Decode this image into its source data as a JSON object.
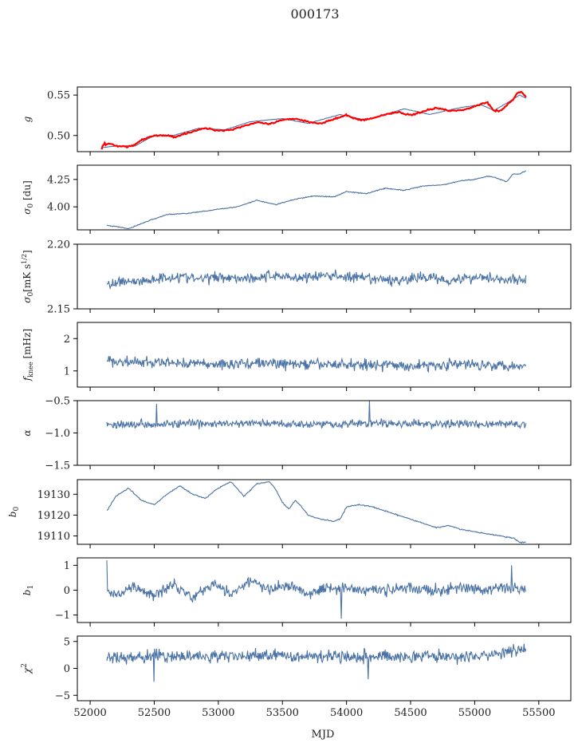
{
  "title": "000173",
  "chart_data": {
    "type": "line",
    "title": "000173",
    "xlabel": "MJD",
    "xlim": [
      51900,
      55750
    ],
    "xticks": [
      52000,
      52500,
      53000,
      53500,
      54000,
      54500,
      55000,
      55500
    ],
    "series_color": "#4a72a5",
    "panels": [
      {
        "ylabel": "g",
        "ylim": [
          0.48,
          0.56
        ],
        "yticks": [
          0.5,
          0.55
        ],
        "ytick_labels": [
          "0.50",
          "0.55"
        ],
        "series": [
          {
            "color": "#4a72a5",
            "x": [
              52100,
              52200,
              52350,
              52500,
              52650,
              52850,
              53050,
              53250,
              53500,
              53700,
              53950,
              54150,
              54450,
              54650,
              54900,
              55050,
              55150,
              55250,
              55350,
              55400
            ],
            "y": [
              0.485,
              0.487,
              0.487,
              0.5,
              0.5,
              0.509,
              0.507,
              0.517,
              0.521,
              0.515,
              0.526,
              0.519,
              0.533,
              0.526,
              0.535,
              0.538,
              0.531,
              0.54,
              0.55,
              0.546
            ]
          },
          {
            "color": "#ff0000",
            "x": [
              52090,
              52095,
              52100,
              52110,
              52120,
              52150,
              52200,
              52300,
              52350,
              52400,
              52500,
              52600,
              52650,
              52800,
              52900,
              53000,
              53100,
              53200,
              53300,
              53400,
              53500,
              53600,
              53700,
              53800,
              53900,
              54000,
              54100,
              54200,
              54300,
              54400,
              54500,
              54600,
              54700,
              54800,
              54900,
              55000,
              55050,
              55100,
              55150,
              55200,
              55250,
              55300,
              55330,
              55360,
              55400
            ],
            "y": [
              0.483,
              0.492,
              0.484,
              0.493,
              0.488,
              0.49,
              0.487,
              0.486,
              0.489,
              0.494,
              0.5,
              0.5,
              0.498,
              0.505,
              0.509,
              0.506,
              0.507,
              0.512,
              0.516,
              0.514,
              0.519,
              0.521,
              0.517,
              0.515,
              0.52,
              0.525,
              0.519,
              0.521,
              0.526,
              0.529,
              0.525,
              0.53,
              0.534,
              0.531,
              0.531,
              0.536,
              0.539,
              0.541,
              0.531,
              0.53,
              0.537,
              0.545,
              0.552,
              0.554,
              0.548
            ]
          }
        ]
      },
      {
        "ylabel": "σ0 [du]",
        "ylim": [
          3.79,
          4.38
        ],
        "yticks": [
          4.0,
          4.25
        ],
        "ytick_labels": [
          "4.00",
          "4.25"
        ],
        "series": [
          {
            "color": "#4a72a5",
            "x": [
              52130,
              52200,
              52300,
              52450,
              52600,
              52750,
              52900,
              53000,
              53150,
              53300,
              53450,
              53600,
              53750,
              53900,
              54000,
              54150,
              54300,
              54450,
              54600,
              54750,
              54900,
              55000,
              55100,
              55150,
              55250,
              55300,
              55350,
              55400
            ],
            "y": [
              3.83,
              3.82,
              3.8,
              3.87,
              3.93,
              3.94,
              3.96,
              3.98,
              4.0,
              4.06,
              4.02,
              4.07,
              4.1,
              4.09,
              4.14,
              4.12,
              4.17,
              4.15,
              4.19,
              4.2,
              4.24,
              4.25,
              4.28,
              4.27,
              4.23,
              4.3,
              4.3,
              4.33
            ]
          }
        ]
      },
      {
        "ylabel": "σ0[mK s^1/2]",
        "ylim": [
          2.15,
          2.2
        ],
        "yticks": [
          2.15,
          2.2
        ],
        "ytick_labels": [
          "2.15",
          "2.20"
        ],
        "series": [
          {
            "color": "#4a72a5",
            "x": [
              52130,
              52250,
              52400,
              52550,
              52700,
              52850,
              53000,
              53150,
              53300,
              53450,
              53600,
              53750,
              53900,
              54050,
              54200,
              54350,
              54500,
              54650,
              54800,
              54950,
              55100,
              55250,
              55400
            ],
            "y": [
              2.167,
              2.172,
              2.171,
              2.174,
              2.175,
              2.173,
              2.175,
              2.174,
              2.174,
              2.176,
              2.174,
              2.175,
              2.176,
              2.174,
              2.173,
              2.172,
              2.173,
              2.175,
              2.172,
              2.174,
              2.175,
              2.172,
              2.173
            ]
          }
        ]
      },
      {
        "ylabel": "f_knee [mHz]",
        "ylim": [
          0.5,
          2.5
        ],
        "yticks": [
          1,
          2
        ],
        "ytick_labels": [
          "1",
          "2"
        ],
        "series": [
          {
            "color": "#4a72a5",
            "x": [
              52130,
              52400,
              52700,
              53000,
              53300,
              53600,
              53900,
              54200,
              54500,
              54800,
              55100,
              55400
            ],
            "y": [
              1.3,
              1.25,
              1.25,
              1.2,
              1.25,
              1.2,
              1.2,
              1.2,
              1.15,
              1.2,
              1.2,
              1.15
            ]
          }
        ]
      },
      {
        "ylabel": "α",
        "ylim": [
          -1.5,
          -0.5
        ],
        "yticks": [
          -1.5,
          -1.0,
          -0.5
        ],
        "ytick_labels": [
          "−1.5",
          "−1.0",
          "−0.5"
        ],
        "series": [
          {
            "color": "#4a72a5",
            "x": [
              52130,
              52400,
              52700,
              53000,
              53300,
              53600,
              53900,
              54200,
              54500,
              54800,
              55100,
              55400
            ],
            "y": [
              -0.87,
              -0.86,
              -0.86,
              -0.86,
              -0.85,
              -0.86,
              -0.86,
              -0.85,
              -0.86,
              -0.86,
              -0.86,
              -0.87
            ]
          }
        ]
      },
      {
        "ylabel": "b0",
        "ylim": [
          19106,
          19137
        ],
        "yticks": [
          19110,
          19120,
          19130
        ],
        "ytick_labels": [
          "19110",
          "19120",
          "19130"
        ],
        "series": [
          {
            "color": "#4a72a5",
            "x": [
              52130,
              52200,
              52300,
              52400,
              52500,
              52600,
              52700,
              52800,
              52900,
              53000,
              53100,
              53200,
              53300,
              53400,
              53450,
              53500,
              53550,
              53600,
              53650,
              53700,
              53800,
              53900,
              53950,
              54000,
              54100,
              54200,
              54300,
              54400,
              54500,
              54600,
              54700,
              54800,
              54900,
              55000,
              55100,
              55200,
              55300,
              55350,
              55400
            ],
            "y": [
              19122,
              19129,
              19133,
              19127,
              19125,
              19130,
              19134,
              19130,
              19128,
              19133,
              19136,
              19129,
              19135,
              19136,
              19132,
              19126,
              19123,
              19127,
              19124,
              19120,
              19118,
              19117,
              19118,
              19124,
              19125,
              19124,
              19122,
              19120,
              19118,
              19116,
              19114,
              19115,
              19113,
              19112,
              19111,
              19110,
              19109,
              19107,
              19107
            ]
          }
        ]
      },
      {
        "ylabel": "b1",
        "ylim": [
          -1.3,
          1.3
        ],
        "yticks": [
          -1,
          0,
          1
        ],
        "ytick_labels": [
          "−1",
          "0",
          "1"
        ],
        "series": [
          {
            "color": "#4a72a5",
            "x": [
              52130,
              52200,
              52350,
              52500,
              52650,
              52800,
              52950,
              53100,
              53250,
              53400,
              53550,
              53700,
              53850,
              54000,
              54150,
              54300,
              54450,
              54600,
              54750,
              54900,
              55050,
              55200,
              55400
            ],
            "y": [
              0.0,
              -0.2,
              0.1,
              -0.2,
              0.3,
              -0.3,
              0.3,
              -0.2,
              0.4,
              0.0,
              0.2,
              -0.1,
              0.1,
              0.1,
              0.0,
              0.0,
              0.1,
              0.0,
              0.0,
              0.1,
              0.0,
              0.1,
              0.0
            ]
          }
        ]
      },
      {
        "ylabel": "χ²",
        "ylim": [
          -6,
          6
        ],
        "yticks": [
          -5,
          0,
          5
        ],
        "ytick_labels": [
          "−5",
          "0",
          "5"
        ],
        "series": [
          {
            "color": "#4a72a5",
            "x": [
              52130,
              52400,
              52700,
              53000,
              53300,
              53600,
              53900,
              54200,
              54500,
              54800,
              55100,
              55400
            ],
            "y": [
              2.0,
              2.2,
              2.3,
              2.2,
              2.4,
              2.3,
              2.4,
              2.2,
              2.3,
              2.2,
              2.3,
              3.5
            ]
          }
        ]
      }
    ]
  }
}
